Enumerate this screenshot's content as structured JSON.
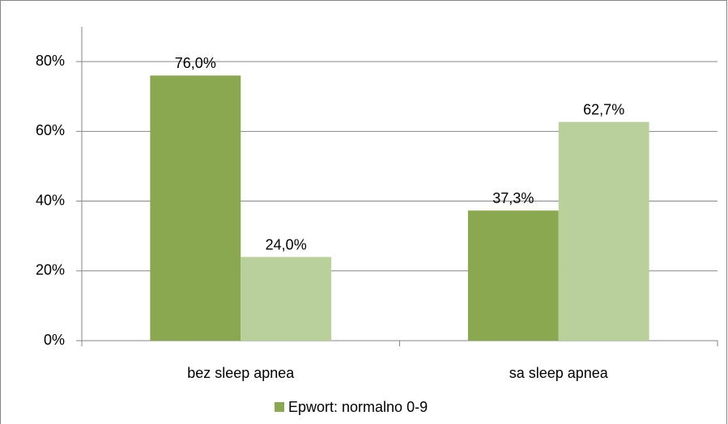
{
  "chart_data": {
    "type": "bar",
    "categories": [
      "bez sleep apnea",
      "sa sleep apnea"
    ],
    "series": [
      {
        "name": "Epwort: normalno 0-9",
        "color": "#8aa84f",
        "values": [
          76.0,
          37.3
        ],
        "value_labels": [
          "76,0%",
          "37,3%"
        ]
      },
      {
        "color": "#b9d09a",
        "values": [
          24.0,
          62.7
        ],
        "value_labels": [
          "24,0%",
          "62,7%"
        ]
      }
    ],
    "ylim": [
      0,
      90
    ],
    "yticks": [
      {
        "value": 0,
        "label": "0%"
      },
      {
        "value": 20,
        "label": "20%"
      },
      {
        "value": 40,
        "label": "40%"
      },
      {
        "value": 60,
        "label": "60%"
      },
      {
        "value": 80,
        "label": "80%"
      }
    ],
    "grid": true
  }
}
